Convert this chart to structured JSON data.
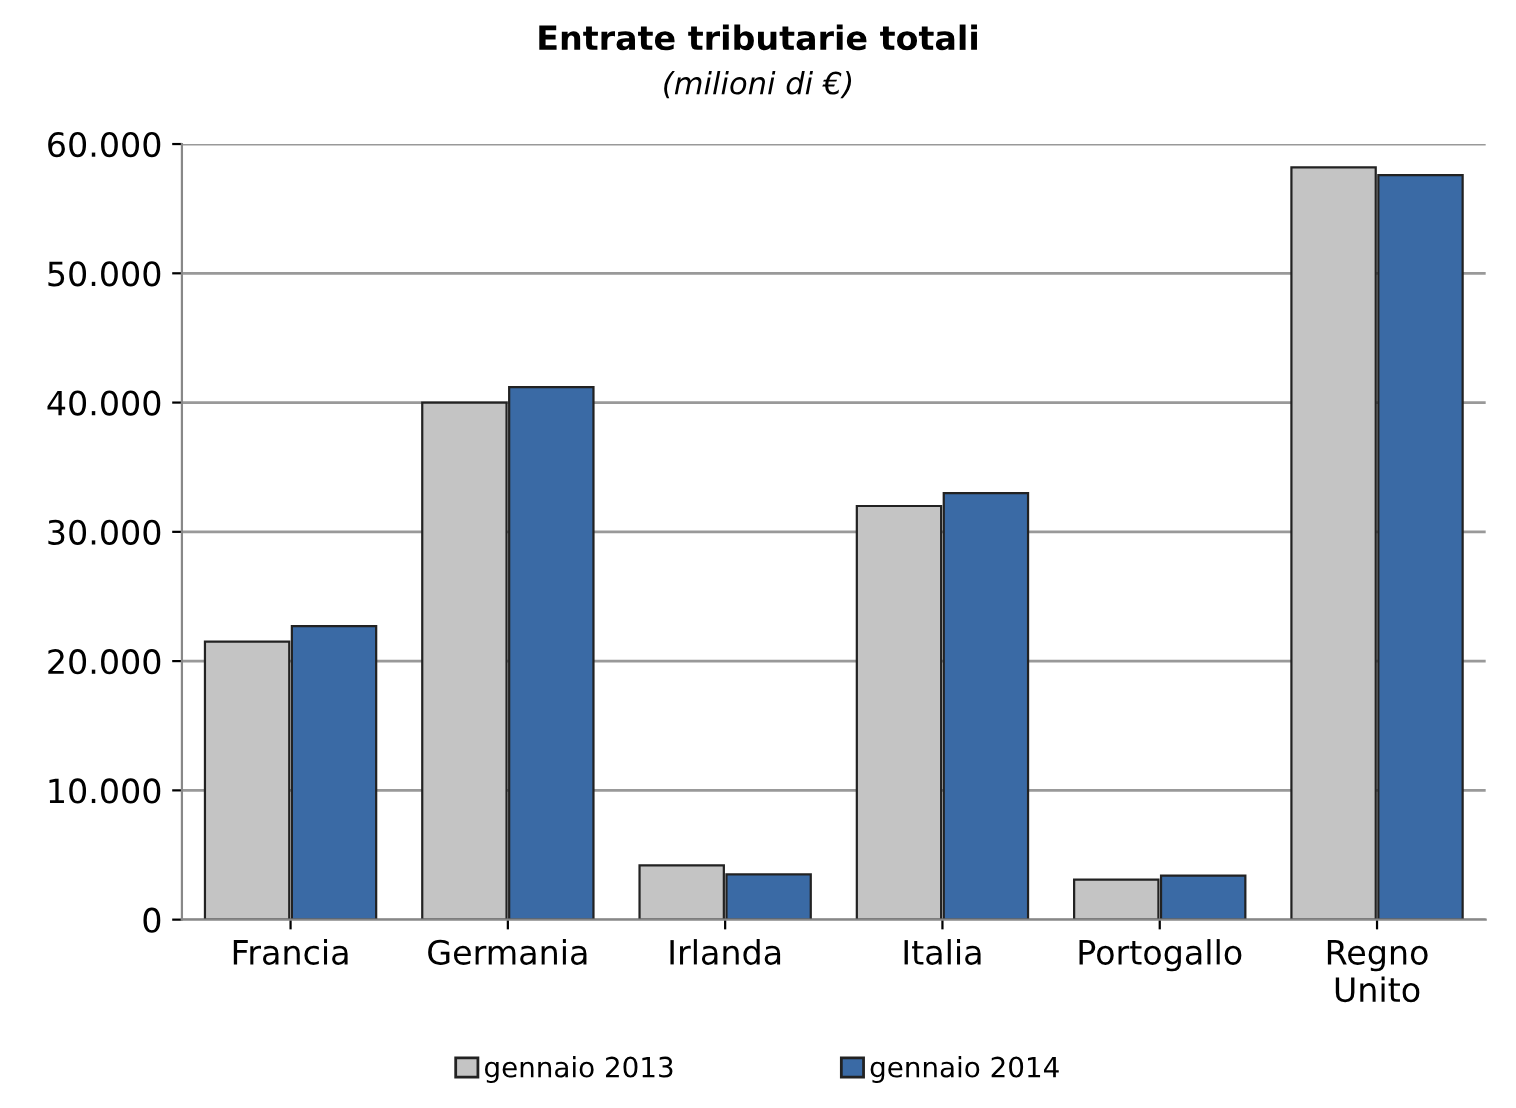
{
  "chart_data": {
    "type": "bar",
    "title": "Entrate tributarie totali",
    "subtitle": "(milioni di €)",
    "categories": [
      "Francia",
      "Germania",
      "Irlanda",
      "Italia",
      "Portogallo",
      "Regno\nUnito"
    ],
    "series": [
      {
        "name": "gennaio 2013",
        "color": "#c4c4c4",
        "values": [
          21500,
          40000,
          4200,
          32000,
          3100,
          58200
        ]
      },
      {
        "name": "gennaio 2014",
        "color": "#3a6aa5",
        "values": [
          22700,
          41200,
          3500,
          33000,
          3400,
          57600
        ]
      }
    ],
    "ylim": [
      0,
      60000
    ],
    "yticks": [
      {
        "value": 0,
        "label": "0"
      },
      {
        "value": 10000,
        "label": "10.000"
      },
      {
        "value": 20000,
        "label": "20.000"
      },
      {
        "value": 30000,
        "label": "30.000"
      },
      {
        "value": 40000,
        "label": "40.000"
      },
      {
        "value": 50000,
        "label": "50.000"
      },
      {
        "value": 60000,
        "label": "60.000"
      }
    ],
    "grid": "y",
    "legend": "bottom"
  }
}
